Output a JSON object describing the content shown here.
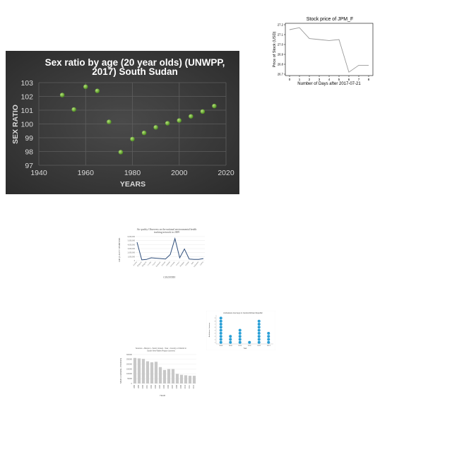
{
  "chart_data": [
    {
      "id": "sex-ratio",
      "type": "scatter",
      "title": "Sex ratio by age (20 year olds) (UNWPP, 2017) South Sudan",
      "title_lines": [
        "Sex ratio by age (20 year olds) (UNWPP,",
        "2017) South Sudan"
      ],
      "xlabel": "YEARS",
      "ylabel": "SEX RATIO",
      "xlim": [
        1940,
        2020
      ],
      "ylim": [
        97,
        103
      ],
      "xticks": [
        1940,
        1960,
        1980,
        2000,
        2020
      ],
      "yticks": [
        97,
        98,
        99,
        100,
        101,
        102,
        103
      ],
      "grid": true,
      "colors": {
        "background": "#3a3a3a",
        "point": "#7cc142",
        "text": "#ffffff"
      },
      "points": [
        {
          "x": 1950,
          "y": 102.1
        },
        {
          "x": 1955,
          "y": 101.05
        },
        {
          "x": 1960,
          "y": 102.7
        },
        {
          "x": 1965,
          "y": 102.4
        },
        {
          "x": 1970,
          "y": 100.15
        },
        {
          "x": 1975,
          "y": 97.95
        },
        {
          "x": 1980,
          "y": 98.9
        },
        {
          "x": 1985,
          "y": 99.35
        },
        {
          "x": 1990,
          "y": 99.75
        },
        {
          "x": 1995,
          "y": 100.05
        },
        {
          "x": 2000,
          "y": 100.25
        },
        {
          "x": 2005,
          "y": 100.55
        },
        {
          "x": 2010,
          "y": 100.9
        },
        {
          "x": 2015,
          "y": 101.3
        }
      ]
    },
    {
      "id": "stock-price",
      "type": "line",
      "title": "Stock price of JPM_F",
      "xlabel": "Number of Days after 2017-07-21",
      "ylabel": "Price of Stock (USD)",
      "xlim": [
        0,
        8
      ],
      "ylim": [
        26.7,
        27.2
      ],
      "xticks": [
        0,
        1,
        2,
        3,
        4,
        5,
        6,
        7,
        8
      ],
      "yticks": [
        "26.7",
        "26.8",
        "26.9",
        "27.0",
        "27.1",
        "27.2"
      ],
      "colors": {
        "line": "#999999"
      },
      "points": [
        {
          "x": 0,
          "y": 27.15
        },
        {
          "x": 1,
          "y": 27.17
        },
        {
          "x": 2,
          "y": 27.06
        },
        {
          "x": 3,
          "y": 27.05
        },
        {
          "x": 4,
          "y": 27.04
        },
        {
          "x": 5,
          "y": 27.05
        },
        {
          "x": 6,
          "y": 26.72
        },
        {
          "x": 7,
          "y": 26.79
        },
        {
          "x": 8,
          "y": 26.79
        }
      ]
    },
    {
      "id": "air-quality",
      "type": "line",
      "title_lines": [
        "Air quality Observers on the national environmental health",
        "tracking network in 2009"
      ],
      "xlabel": "COUNTRY",
      "ylabel": "AIR QUALITY OBSERVERS",
      "ylim": [
        0,
        6000000
      ],
      "yticks": [
        "0",
        "1,000,000",
        "2,000,000",
        "3,000,000",
        "4,000,000",
        "5,000,000",
        "6,000,000"
      ],
      "colors": {
        "line": "#2e4d7a"
      },
      "categories": [
        "Austria",
        "Belgium",
        "Bulgaria",
        "Croatia",
        "Cyprus",
        "Denmark",
        "Estonia",
        "Finland",
        "Germany",
        "Greece",
        "Hungary",
        "Ireland",
        "Italy",
        "Lithuania",
        "Latvia"
      ],
      "values": [
        4600000,
        200000,
        300000,
        700000,
        600000,
        500000,
        400000,
        1500000,
        5500000,
        700000,
        2900000,
        400000,
        300000,
        300000,
        500000
      ]
    },
    {
      "id": "dot-plot",
      "type": "scatter",
      "title": "Ambulance Journeys in Central African Republic",
      "ylabel": "Ambulance Journeys",
      "xlabel": "Year",
      "categories": [
        "2008",
        "2009",
        "2010",
        "2011",
        "2012",
        "2013"
      ],
      "values": [
        9,
        3,
        5,
        1,
        8,
        4
      ],
      "colors": {
        "dot": "#2a9fd6"
      }
    },
    {
      "id": "sand-bars",
      "type": "bar",
      "title_lines": [
        "Sources - Alluvium - Sand, Gravel - Year - Country or District in",
        "South New Wales Region (tonnes)"
      ],
      "xlabel": "YEAR",
      "ylabel": "SAND & GRAVEL (TONNES)",
      "ylim": [
        0,
        300000
      ],
      "yticks": [
        "0",
        "50000",
        "100000",
        "150000",
        "200000",
        "250000",
        "300000"
      ],
      "colors": {
        "bar": "#c8c8c8"
      },
      "categories": [
        "1998",
        "1999",
        "2000",
        "2001",
        "2002",
        "2003",
        "2004",
        "2005",
        "2006",
        "2007",
        "2008",
        "2009",
        "2010",
        "2011",
        "2012"
      ],
      "values": [
        265000,
        260000,
        255000,
        230000,
        220000,
        225000,
        170000,
        140000,
        150000,
        150000,
        100000,
        90000,
        85000,
        80000,
        80000
      ]
    }
  ]
}
